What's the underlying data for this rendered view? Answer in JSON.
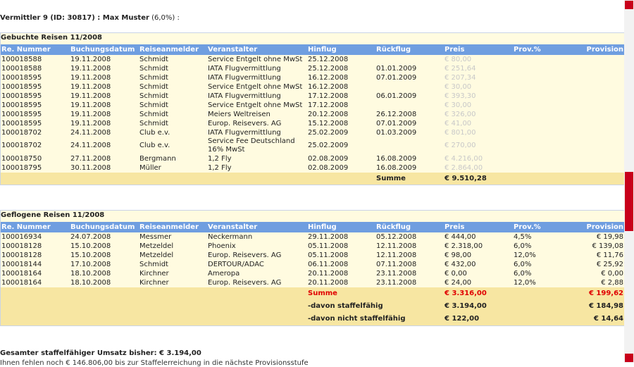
{
  "heading": {
    "name": "Vermittler 9 (ID: 30817) : Max Muster",
    "rate": "(6,0%) :"
  },
  "sections": [
    {
      "title": "Gebuchte Reisen 11/2008",
      "columns": [
        "Re. Nummer",
        "Buchungsdatum",
        "Reiseanmelder",
        "Veranstalter",
        "Hinflug",
        "Rückflug",
        "Preis",
        "Prov.%",
        "Provision"
      ],
      "rows": [
        [
          "100018588",
          "19.11.2008",
          "Schmidt",
          "Service Entgelt ohne MwSt",
          "25.12.2008",
          null,
          "€ 80,00"
        ],
        [
          "100018588",
          "19.11.2008",
          "Schmidt",
          "IATA Flugvermittlung",
          "25.12.2008",
          "01.01.2009",
          "€ 251,64"
        ],
        [
          "100018595",
          "19.11.2008",
          "Schmidt",
          "IATA Flugvermittlung",
          "16.12.2008",
          "07.01.2009",
          "€ 207,34"
        ],
        [
          "100018595",
          "19.11.2008",
          "Schmidt",
          "Service Entgelt ohne MwSt",
          "16.12.2008",
          null,
          "€ 30,00"
        ],
        [
          "100018595",
          "19.11.2008",
          "Schmidt",
          "IATA Flugvermittlung",
          "17.12.2008",
          "06.01.2009",
          "€ 393,30"
        ],
        [
          "100018595",
          "19.11.2008",
          "Schmidt",
          "Service Entgelt ohne MwSt",
          "17.12.2008",
          null,
          "€ 30,00"
        ],
        [
          "100018595",
          "19.11.2008",
          "Schmidt",
          "Meiers Weltreisen",
          "20.12.2008",
          "26.12.2008",
          "€ 326,00"
        ],
        [
          "100018595",
          "19.11.2008",
          "Schmidt",
          "Europ. Reisevers. AG",
          "15.12.2008",
          "07.01.2009",
          "€ 41,00"
        ],
        [
          "100018702",
          "24.11.2008",
          "Club e.v.",
          "IATA Flugvermittlung",
          "25.02.2009",
          "01.03.2009",
          "€ 801,00"
        ],
        [
          "100018702",
          "24.11.2008",
          "Club e.v.",
          "Service Fee Deutschland 16% MwSt",
          "25.02.2009",
          null,
          "€ 270,00"
        ],
        [
          "100018750",
          "27.11.2008",
          "Bergmann",
          "1,2 Fly",
          "02.08.2009",
          "16.08.2009",
          "€ 4.216,00"
        ],
        [
          "100018795",
          "30.11.2008",
          "Müller",
          "1,2 Fly",
          "02.08.2009",
          "16.08.2009",
          "€ 2.864,00"
        ]
      ],
      "summary": [
        {
          "label": "Summe",
          "price": "€ 9.510,28"
        }
      ]
    },
    {
      "title": "Geflogene Reisen 11/2008",
      "columns": [
        "Re. Nummer",
        "Buchungsdatum",
        "Reiseanmelder",
        "Veranstalter",
        "Hinflug",
        "Rückflug",
        "Preis",
        "Prov.%",
        "Provision"
      ],
      "rows": [
        [
          "100016934",
          "24.07.2008",
          "Messmer",
          "Neckermann",
          "29.11.2008",
          "05.12.2008",
          "€ 444,00",
          "4,5%",
          "€ 19,98"
        ],
        [
          "100018128",
          "15.10.2008",
          "Metzeldel",
          "Phoenix",
          "05.11.2008",
          "12.11.2008",
          "€ 2.318,00",
          "6,0%",
          "€ 139,08"
        ],
        [
          "100018128",
          "15.10.2008",
          "Metzeldel",
          "Europ. Reisevers. AG",
          "05.11.2008",
          "12.11.2008",
          "€ 98,00",
          "12,0%",
          "€ 11,76"
        ],
        [
          "100018144",
          "17.10.2008",
          "Schmidt",
          "DERTOUR/ADAC",
          "06.11.2008",
          "07.11.2008",
          "€ 432,00",
          "6,0%",
          "€ 25,92"
        ],
        [
          "100018164",
          "18.10.2008",
          "Kirchner",
          "Ameropa",
          "20.11.2008",
          "23.11.2008",
          "€ 0,00",
          "6,0%",
          "€ 0,00"
        ],
        [
          "100018164",
          "18.10.2008",
          "Kirchner",
          "Europ. Reisevers. AG",
          "20.11.2008",
          "23.11.2008",
          "€ 24,00",
          "12,0%",
          "€ 2,88"
        ]
      ],
      "summary": [
        {
          "label": "Summe",
          "price": "€ 3.316,00",
          "commission": "€ 199,62"
        },
        {
          "label": "-davon staffelfähig",
          "price": "€ 3.194,00",
          "commission": "€ 184,98"
        },
        {
          "label": "-davon nicht staffelfähig",
          "price": "€ 122,00",
          "commission": "€ 14,64"
        }
      ]
    }
  ],
  "footer": {
    "total": "Gesamter staffelfähiger Umsatz bisher: € 3.194,00",
    "note": "Ihnen fehlen noch € 146.806,00 bis zur Staffelerreichung in die nächste Provisionsstufe"
  }
}
